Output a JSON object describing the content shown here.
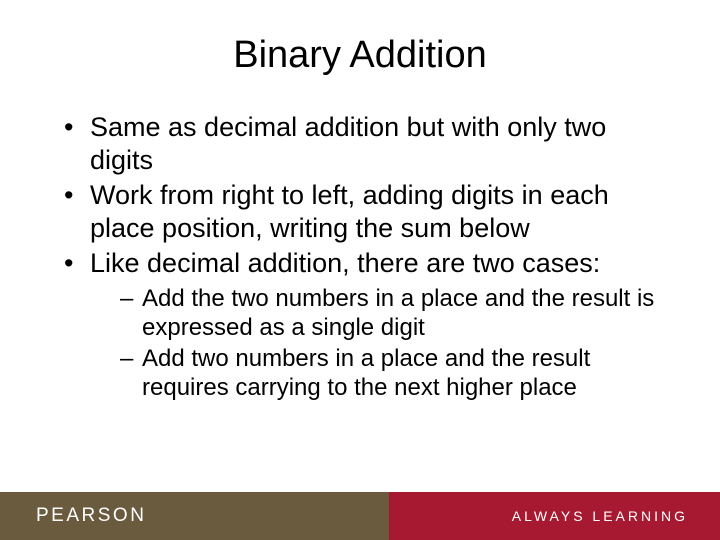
{
  "slide": {
    "title": "Binary Addition",
    "bullets": [
      "Same as decimal addition but with only two digits",
      "Work from right to left, adding digits in each place position, writing the sum below",
      "Like decimal addition, there are two cases:"
    ],
    "sub_bullets": [
      "Add the two numbers in a place and the result is expressed as a single digit",
      "Add two numbers in a place and the result requires carrying to the next higher place"
    ]
  },
  "footer": {
    "brand": "PEARSON",
    "tagline": "ALWAYS LEARNING"
  },
  "colors": {
    "footer_left_bg": "#6a5b3f",
    "footer_right_bg": "#a71930",
    "text": "#000000",
    "footer_text": "#ffffff"
  },
  "typography": {
    "title_fontsize": 38,
    "bullet_fontsize": 27,
    "sub_bullet_fontsize": 24,
    "brand_fontsize": 19,
    "tagline_fontsize": 14
  }
}
